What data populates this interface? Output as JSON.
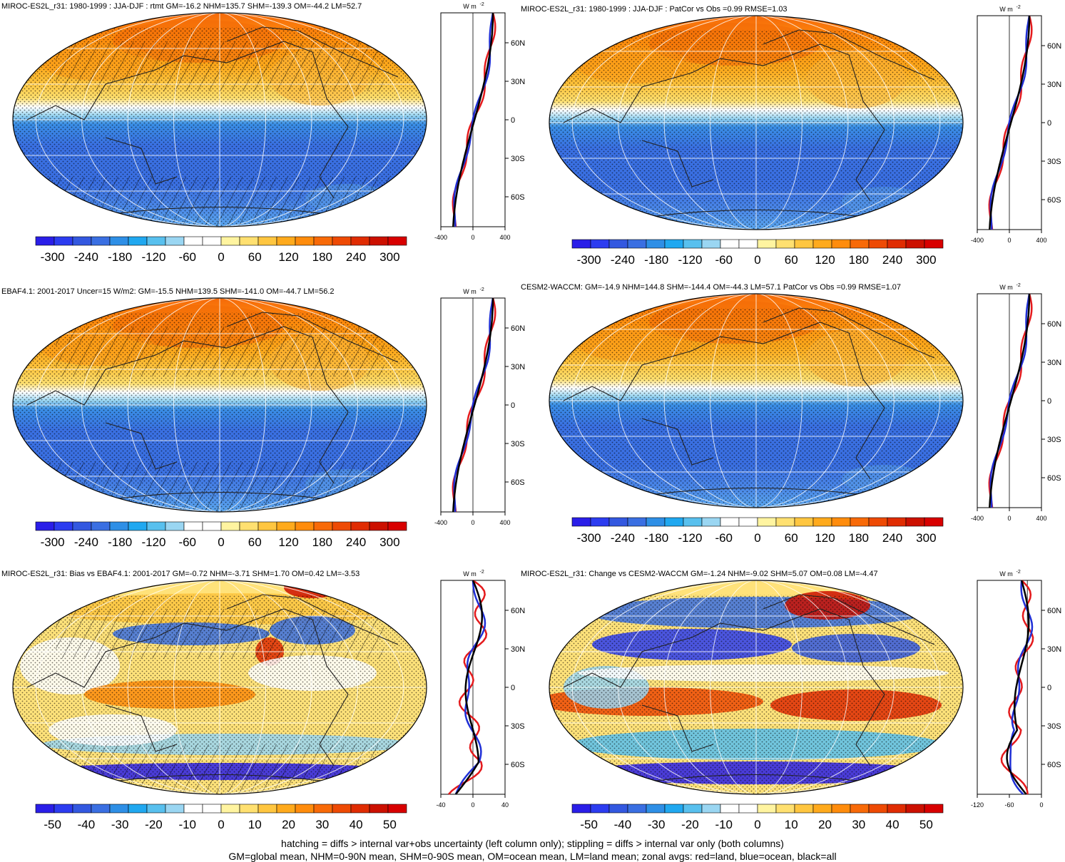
{
  "panels": [
    {
      "id": "p1",
      "title": "MIROC-ES2L_r31: 1980-1999 : JJA-DJF : rtmt GM=-16.2 NHM=135.7 SHM=-139.3 OM=-44.2 LM=52.7",
      "kind": "abs",
      "hatch": true,
      "ox": 18,
      "oy": 18,
      "cbTicks": [
        "-300",
        "-240",
        "-180",
        "-120",
        "-60",
        "0",
        "60",
        "120",
        "180",
        "240",
        "300"
      ],
      "zonalXTicks": [
        "-400",
        "0",
        "400"
      ],
      "zonal": "abs"
    },
    {
      "id": "p2",
      "title": "MIROC-ES2L_r31: 1980-1999 : JJA-DJF : PatCor vs Obs =0.99 RMSE=1.03",
      "kind": "abs",
      "hatch": false,
      "ox": 770,
      "oy": 22,
      "cbTicks": [
        "-300",
        "-240",
        "-180",
        "-120",
        "-60",
        "0",
        "60",
        "120",
        "180",
        "240",
        "300"
      ],
      "zonalXTicks": [
        "-400",
        "0",
        "400"
      ],
      "zonal": "abs"
    },
    {
      "id": "p3",
      "title": "EBAF4.1: 2001-2017 Uncer=15 W/m2: GM=-15.5 NHM=139.5 SHM=-141.0 OM=-44.7 LM=56.2",
      "kind": "abs",
      "hatch": true,
      "ox": 18,
      "oy": 418,
      "cbTicks": [
        "-300",
        "-240",
        "-180",
        "-120",
        "-60",
        "0",
        "60",
        "120",
        "180",
        "240",
        "300"
      ],
      "zonalXTicks": [
        "-400",
        "0",
        "400"
      ],
      "zonal": "abs"
    },
    {
      "id": "p4",
      "title": "CESM2-WACCM: GM=-14.9 NHM=144.8 SHM=-144.4 OM=-44.3 LM=57.1 PatCor vs Obs =0.99 RMSE=1.07",
      "kind": "abs",
      "hatch": false,
      "ox": 770,
      "oy": 412,
      "cbTicks": [
        "-300",
        "-240",
        "-180",
        "-120",
        "-60",
        "0",
        "60",
        "120",
        "180",
        "240",
        "300"
      ],
      "zonalXTicks": [
        "-400",
        "0",
        "400"
      ],
      "zonal": "abs"
    },
    {
      "id": "p5",
      "title": "MIROC-ES2L_r31: Bias vs EBAF4.1: 2001-2017 GM=-0.72 NHM=-3.71 SHM=1.70 OM=0.42 LM=-3.53",
      "kind": "diff",
      "hatch": true,
      "ox": 18,
      "oy": 814,
      "cbTicks": [
        "-50",
        "-40",
        "-30",
        "-20",
        "-10",
        "0",
        "10",
        "20",
        "30",
        "40",
        "50"
      ],
      "zonalXTicks": [
        "-40",
        "0",
        "40"
      ],
      "zonal": "bias"
    },
    {
      "id": "p6",
      "title": "MIROC-ES2L_r31: Change vs CESM2-WACCM GM=-1.24 NHM=-9.02 SHM=5.07 OM=0.08 LM=-4.47",
      "kind": "diff",
      "hatch": false,
      "ox": 770,
      "oy": 814,
      "cbTicks": [
        "-50",
        "-40",
        "-30",
        "-20",
        "-10",
        "0",
        "10",
        "20",
        "30",
        "40",
        "50"
      ],
      "zonalXTicks": [
        "-120",
        "-60",
        "0"
      ],
      "zonal": "change"
    }
  ],
  "latLabels": [
    "60N",
    "30N",
    "0",
    "30S",
    "60S"
  ],
  "unitLabel": "W m",
  "unitExp": "-2",
  "colors": {
    "land": "#e41a1c",
    "ocean": "#1f2fd6",
    "all": "#000000",
    "palette": [
      "#2a1ee8",
      "#2c3cf0",
      "#3358e0",
      "#3a6fe2",
      "#2e8fe6",
      "#20a8f0",
      "#58c0ee",
      "#9ad6f2",
      "#ffffff",
      "#ffffff",
      "#fff4a0",
      "#ffe070",
      "#ffc640",
      "#ffaa1c",
      "#ff8c0c",
      "#f86a08",
      "#ee4a04",
      "#e02c02",
      "#cc1000",
      "#d80000"
    ]
  },
  "footer": {
    "line1": "hatching = diffs > internal var+obs uncertainty (left column only); stippling = diffs > internal var only (both columns)",
    "line2": "GM=global mean, NHM=0-90N mean, SHM=0-90S mean, OM=ocean mean, LM=land mean; zonal avgs: red=land, blue=ocean, black=all"
  }
}
